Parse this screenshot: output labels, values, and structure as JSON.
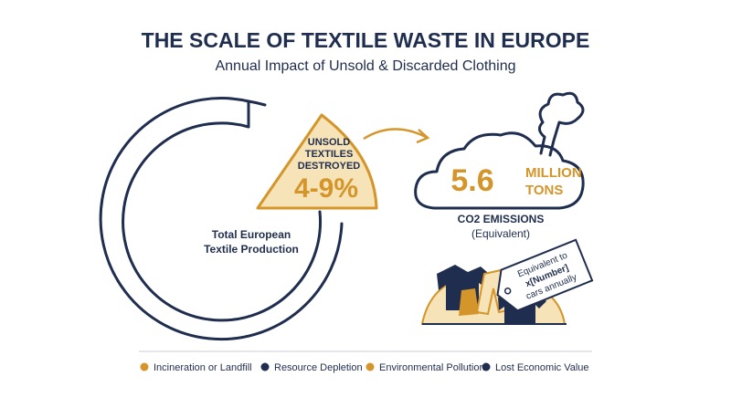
{
  "header": {
    "title": "THE SCALE OF TEXTILE WASTE IN EUROPE",
    "subtitle": "Annual Impact of Unsold & Discarded Clothing"
  },
  "donut": {
    "label_lines": [
      "Total European",
      "Textile Production"
    ],
    "slice": {
      "label_lines": [
        "UNSOLD",
        "TEXTILES",
        "DESTROYED"
      ],
      "value": "4-9%"
    }
  },
  "emissions": {
    "value": "5.6",
    "unit_lines": [
      "MILLION",
      "TONS"
    ],
    "label": "CO2 EMISSIONS",
    "note": "(Equivalent)"
  },
  "tag": {
    "lines": [
      "Equivalent to",
      "x[Number]",
      "cars annually"
    ]
  },
  "legend": [
    {
      "label": "Incineration or Landfill",
      "color": "#d4952a"
    },
    {
      "label": "Resource Depletion",
      "color": "#1f2d4e"
    },
    {
      "label": "Environmental Pollution",
      "color": "#d4952a"
    },
    {
      "label": "Lost Economic Value",
      "color": "#1f2d4e"
    }
  ]
}
